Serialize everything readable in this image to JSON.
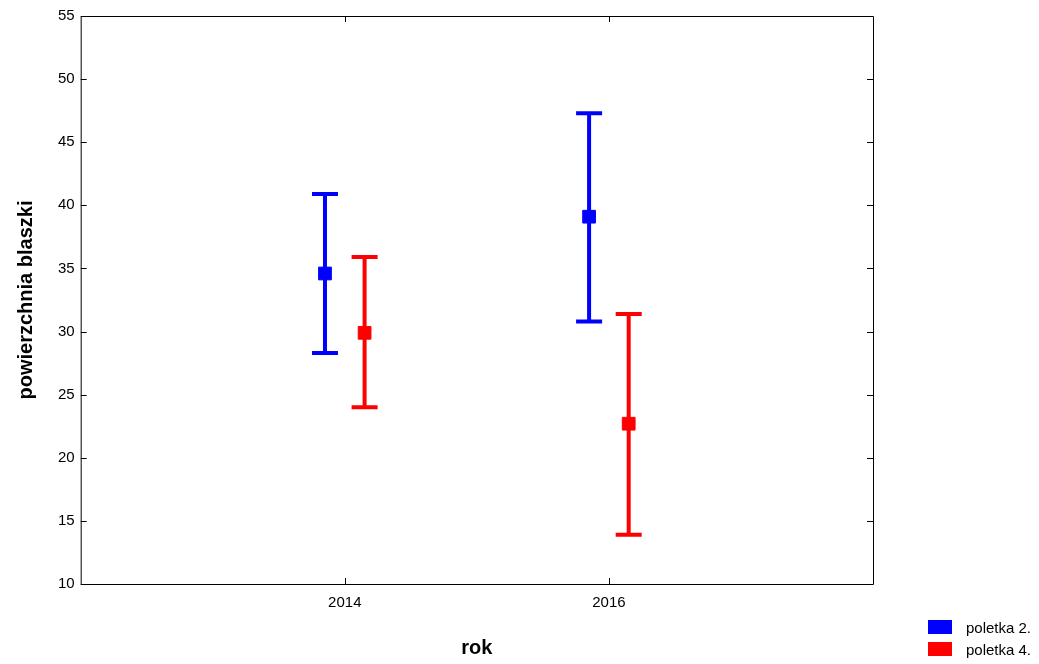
{
  "chart_data": {
    "type": "scatter",
    "xlabel": "rok",
    "ylabel": "powierzchnia blaszki",
    "xlim": [
      2012,
      2018
    ],
    "xticks": [
      2014,
      2016
    ],
    "ylim": [
      10,
      55
    ],
    "yticks": [
      10,
      15,
      20,
      25,
      30,
      35,
      40,
      45,
      50,
      55
    ],
    "series": [
      {
        "name": "poletka 2.",
        "color": "#0000ff",
        "x": [
          2013.85,
          2015.85
        ],
        "values": [
          34.6,
          39.1
        ],
        "errors": [
          [
            28.3,
            40.9
          ],
          [
            30.8,
            47.3
          ]
        ]
      },
      {
        "name": "poletka 4.",
        "color": "#ff0000",
        "x": [
          2014.15,
          2016.15
        ],
        "values": [
          29.9,
          22.7
        ],
        "errors": [
          [
            24.0,
            35.9
          ],
          [
            13.9,
            31.4
          ]
        ]
      }
    ],
    "marker": "square",
    "grid": false,
    "legend": "bottom right"
  }
}
